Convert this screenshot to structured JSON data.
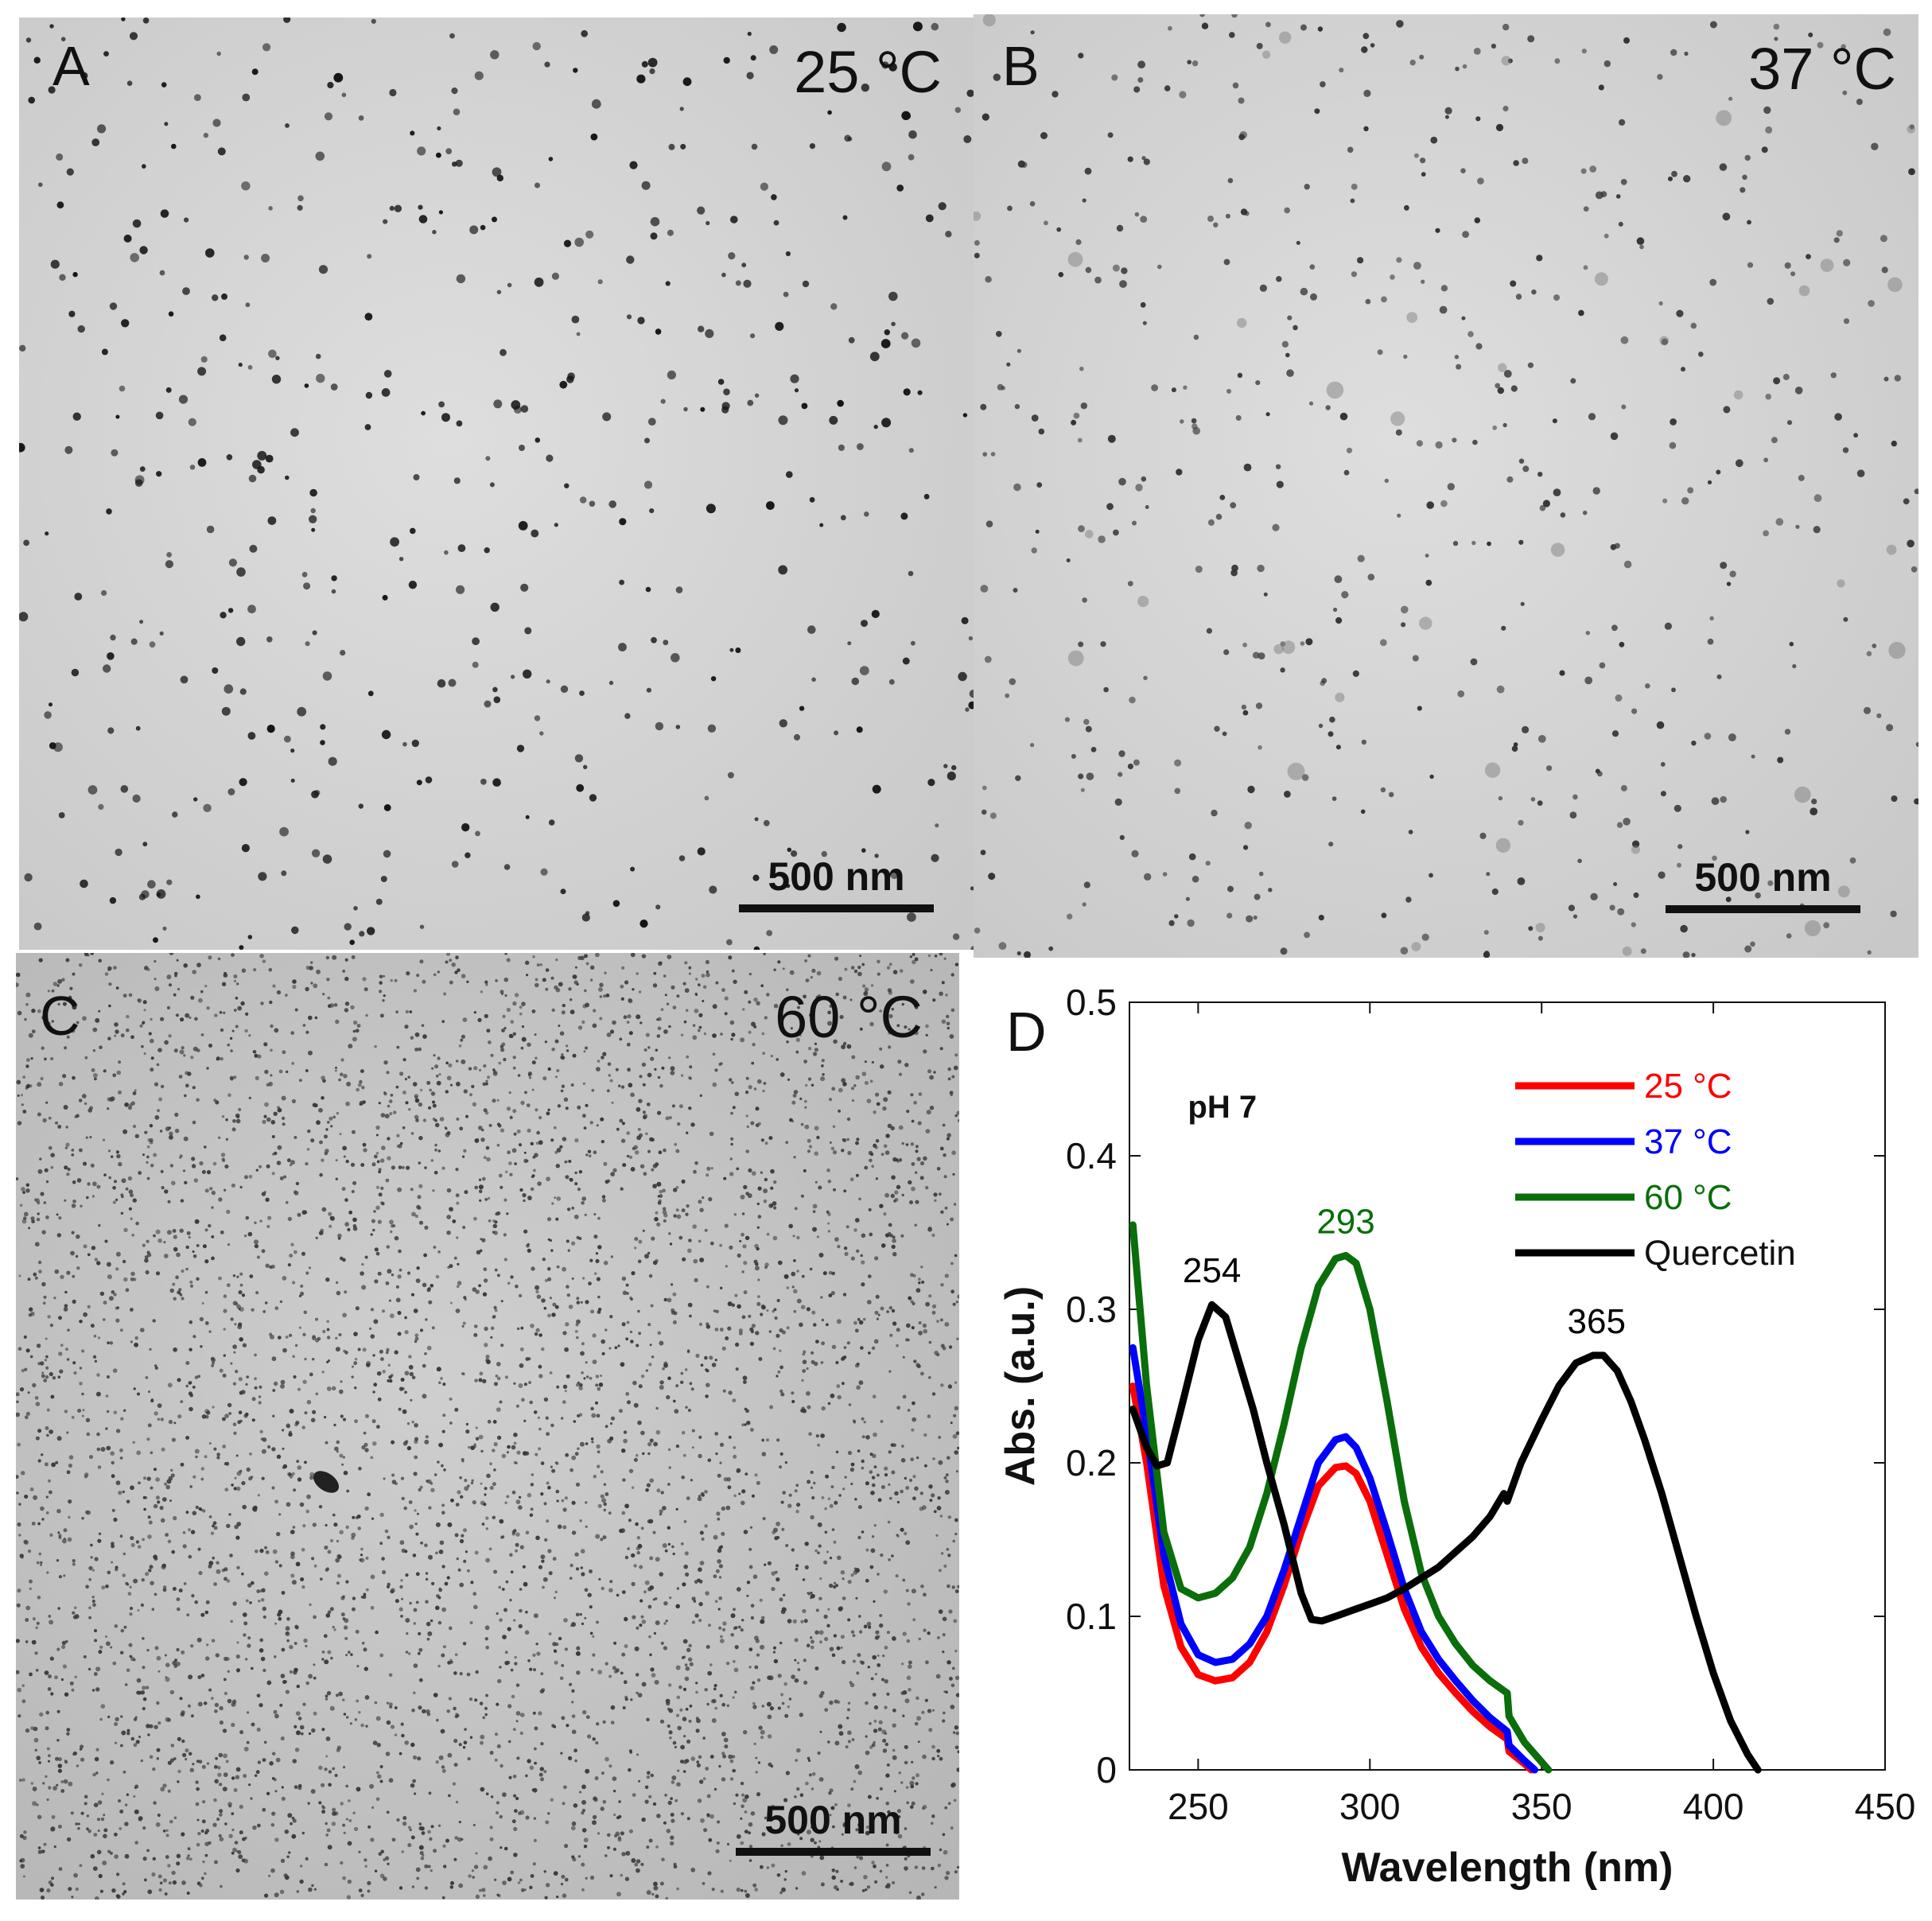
{
  "panels": [
    {
      "label": "A",
      "temperature": "25 °C",
      "scale_bar": "500 nm",
      "style": "sparse"
    },
    {
      "label": "B",
      "temperature": "37 °C",
      "scale_bar": "500 nm",
      "style": "sparse-gray"
    },
    {
      "label": "C",
      "temperature": "60 °C",
      "scale_bar": "500 nm",
      "style": "dense"
    }
  ],
  "chart_panel_label": "D",
  "chart_data": {
    "type": "line",
    "xlabel": "Wavelength (nm)",
    "ylabel": "Abs. (a.u.)",
    "xlim": [
      230,
      450
    ],
    "ylim": [
      0,
      0.5
    ],
    "xticks": [
      250,
      300,
      350,
      400,
      450
    ],
    "yticks": [
      0,
      0.1,
      0.2,
      0.3,
      0.4,
      0.5
    ],
    "ytick_labels": [
      "0",
      "0.1",
      "0.2",
      "0.3",
      "0.4",
      "0.5"
    ],
    "grid": false,
    "legend_position": "top-right",
    "annotation": "pH 7",
    "series": [
      {
        "name": "25 °C",
        "color": "#ff0000",
        "x": [
          231,
          235,
          240,
          245,
          250,
          255,
          260,
          265,
          270,
          275,
          280,
          285,
          290,
          293,
          296,
          300,
          305,
          310,
          315,
          320,
          325,
          330,
          335,
          340,
          340.5,
          345,
          347
        ],
        "y": [
          0.25,
          0.2,
          0.12,
          0.08,
          0.062,
          0.058,
          0.06,
          0.07,
          0.09,
          0.12,
          0.155,
          0.185,
          0.197,
          0.198,
          0.193,
          0.175,
          0.14,
          0.105,
          0.08,
          0.063,
          0.05,
          0.038,
          0.028,
          0.02,
          0.012,
          0.004,
          0.0
        ]
      },
      {
        "name": "37 °C",
        "color": "#0000ff",
        "x": [
          231,
          235,
          240,
          245,
          250,
          255,
          260,
          265,
          270,
          275,
          280,
          285,
          290,
          293,
          296,
          300,
          305,
          310,
          315,
          320,
          325,
          330,
          335,
          340,
          340.5,
          345,
          348
        ],
        "y": [
          0.275,
          0.22,
          0.14,
          0.095,
          0.075,
          0.07,
          0.072,
          0.082,
          0.1,
          0.13,
          0.165,
          0.2,
          0.215,
          0.217,
          0.21,
          0.19,
          0.155,
          0.118,
          0.09,
          0.072,
          0.058,
          0.045,
          0.034,
          0.025,
          0.016,
          0.006,
          0.0
        ]
      },
      {
        "name": "60 °C",
        "color": "#0a6e0a",
        "x": [
          231,
          235,
          240,
          245,
          250,
          255,
          260,
          265,
          270,
          275,
          280,
          285,
          290,
          293,
          296,
          300,
          305,
          310,
          315,
          320,
          325,
          330,
          335,
          340,
          340.5,
          345,
          352
        ],
        "y": [
          0.355,
          0.25,
          0.155,
          0.118,
          0.112,
          0.115,
          0.125,
          0.145,
          0.18,
          0.225,
          0.275,
          0.315,
          0.333,
          0.335,
          0.33,
          0.3,
          0.24,
          0.175,
          0.128,
          0.1,
          0.082,
          0.068,
          0.058,
          0.05,
          0.035,
          0.018,
          0.0
        ]
      },
      {
        "name": "Quercetin",
        "color": "#000000",
        "x": [
          231,
          235,
          238,
          241,
          245,
          250,
          254,
          258,
          262,
          266,
          270,
          275,
          280,
          283,
          286,
          290,
          295,
          300,
          305,
          310,
          315,
          320,
          325,
          330,
          335,
          339,
          340,
          344,
          350,
          355,
          360,
          365,
          368,
          372,
          376,
          380,
          385,
          390,
          395,
          400,
          405,
          410,
          413
        ],
        "y": [
          0.235,
          0.21,
          0.198,
          0.2,
          0.235,
          0.28,
          0.303,
          0.295,
          0.265,
          0.235,
          0.2,
          0.16,
          0.115,
          0.098,
          0.097,
          0.1,
          0.104,
          0.108,
          0.112,
          0.118,
          0.125,
          0.132,
          0.142,
          0.152,
          0.165,
          0.18,
          0.175,
          0.2,
          0.228,
          0.25,
          0.265,
          0.27,
          0.27,
          0.26,
          0.24,
          0.215,
          0.18,
          0.14,
          0.1,
          0.063,
          0.032,
          0.01,
          0.0
        ]
      }
    ],
    "annotations": [
      {
        "text": "254",
        "x": 254,
        "y": 0.303,
        "color": "#000000"
      },
      {
        "text": "293",
        "x": 293,
        "y": 0.335,
        "color": "#0a6e0a"
      },
      {
        "text": "365",
        "x": 366,
        "y": 0.27,
        "color": "#000000"
      }
    ]
  }
}
